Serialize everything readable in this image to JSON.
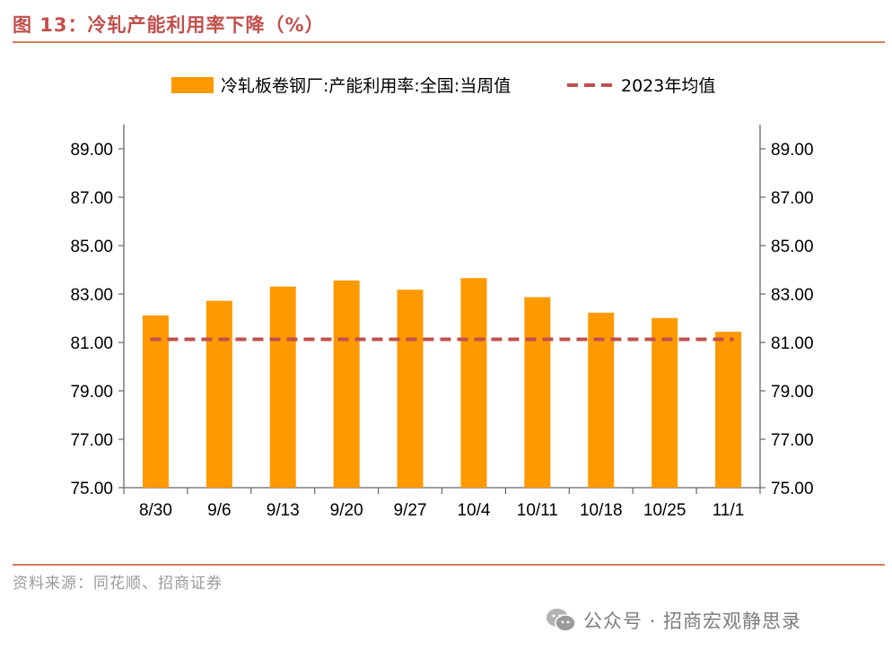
{
  "header": {
    "title": "图 13：冷轧产能利用率下降（%）"
  },
  "footer": {
    "source": "资料来源：同花顺、招商证券",
    "watermark_text": "公众号 · 招商宏观静思录",
    "watermark_icon": "wechat-icon"
  },
  "colors": {
    "bar": "#ff9900",
    "avg_line": "#c0504d",
    "title": "#c0504d",
    "rule": "#d27c5a"
  },
  "chart_data": {
    "type": "bar",
    "title": "",
    "xlabel": "",
    "ylabel": "",
    "categories": [
      "8/30",
      "9/6",
      "9/13",
      "9/20",
      "9/27",
      "10/4",
      "10/11",
      "10/18",
      "10/25",
      "11/1"
    ],
    "series": [
      {
        "name": "冷轧板卷钢厂:产能利用率:全国:当周值",
        "type": "bar",
        "values": [
          82.12,
          82.72,
          83.31,
          83.56,
          83.18,
          83.66,
          82.87,
          82.23,
          82.01,
          81.44
        ]
      },
      {
        "name": "2023年均值",
        "type": "line",
        "style": "dashed",
        "value": 81.13
      }
    ],
    "ylim": [
      75,
      90
    ],
    "y_ticks": [
      "75.00",
      "77.00",
      "79.00",
      "81.00",
      "83.00",
      "85.00",
      "87.00",
      "89.00"
    ],
    "y2_ticks": [
      "75.00",
      "77.00",
      "79.00",
      "81.00",
      "83.00",
      "85.00",
      "87.00",
      "89.00"
    ],
    "legend_position": "top",
    "grid": false
  }
}
